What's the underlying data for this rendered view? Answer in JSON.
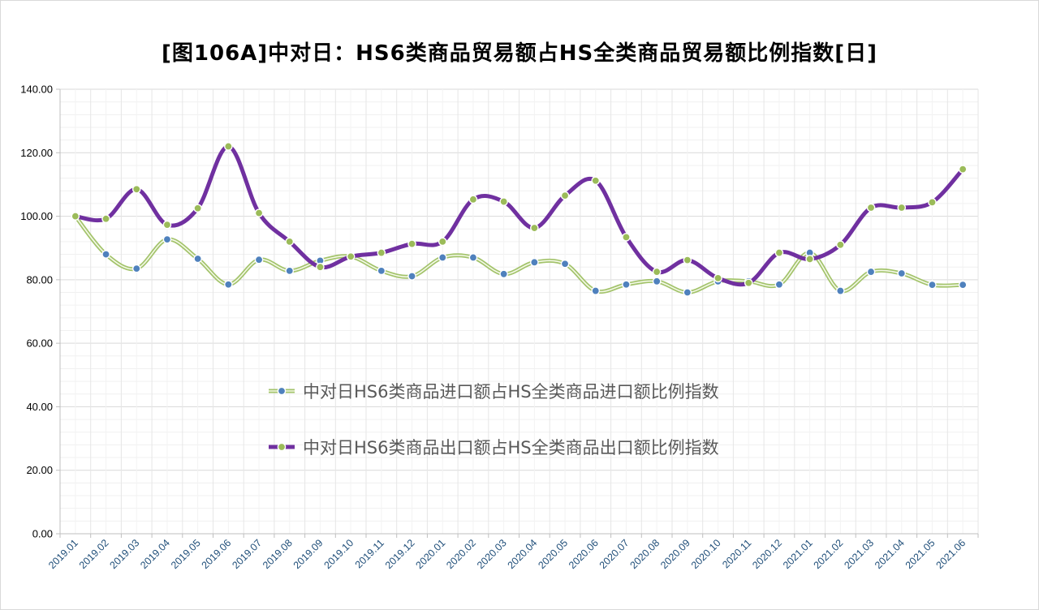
{
  "chart_data": {
    "type": "line",
    "title": "[图106A]中对日：HS6类商品贸易额占HS全类商品贸易额比例指数[日]",
    "xlabel": "",
    "ylabel": "",
    "ylim": [
      0,
      140
    ],
    "yticks": [
      "0.00",
      "20.00",
      "40.00",
      "60.00",
      "80.00",
      "100.00",
      "120.00",
      "140.00"
    ],
    "grid": true,
    "legend_position": "center",
    "categories": [
      "2019.01",
      "2019.02",
      "2019.03",
      "2019.04",
      "2019.05",
      "2019.06",
      "2019.07",
      "2019.08",
      "2019.09",
      "2019.10",
      "2019.11",
      "2019.12",
      "2020.01",
      "2020.02",
      "2020.03",
      "2020.04",
      "2020.05",
      "2020.06",
      "2020.07",
      "2020.08",
      "2020.09",
      "2020.10",
      "2020.11",
      "2020.12",
      "2021.01",
      "2021.02",
      "2021.03",
      "2021.04",
      "2021.05",
      "2021.06"
    ],
    "series": [
      {
        "name": "中对日HS6类商品进口额占HS全类商品进口额比例指数",
        "line_color": "#c5d99a",
        "marker_color": "#4f81bd",
        "values": [
          100.0,
          88.0,
          83.5,
          92.7,
          86.6,
          78.5,
          86.3,
          82.8,
          86.0,
          87.3,
          82.8,
          81.1,
          87.0,
          87.0,
          81.8,
          85.5,
          85.0,
          76.5,
          78.5,
          79.5,
          76.0,
          79.5,
          79.5,
          78.5,
          88.5,
          76.5,
          82.5,
          82.0,
          78.4,
          78.4
        ]
      },
      {
        "name": "中对日HS6类商品出口额占HS全类商品出口额比例指数",
        "line_color": "#7030a0",
        "marker_color": "#9bbb59",
        "values": [
          100.0,
          99.2,
          108.5,
          97.3,
          102.5,
          122.0,
          101.0,
          92.0,
          84.0,
          87.3,
          88.5,
          91.3,
          92.0,
          105.3,
          104.6,
          96.3,
          106.5,
          111.2,
          93.4,
          82.5,
          86.2,
          80.5,
          79.0,
          88.5,
          86.5,
          91.0,
          102.7,
          102.7,
          104.4,
          114.8
        ]
      }
    ]
  }
}
